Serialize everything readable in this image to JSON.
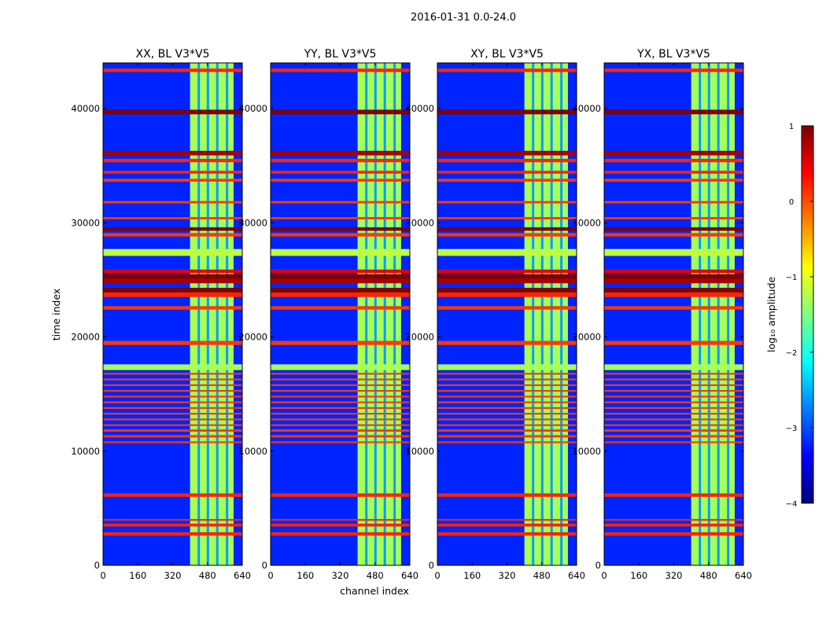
{
  "chart_data": {
    "type": "heatmap",
    "suptitle": "2016-01-31 0.0-24.0",
    "xlabel": "channel index",
    "ylabel": "time index",
    "xlim": [
      0,
      640
    ],
    "ylim": [
      0,
      44000
    ],
    "xticks": [
      0,
      160,
      320,
      480,
      640
    ],
    "yticks": [
      0,
      10000,
      20000,
      30000,
      40000
    ],
    "xtick_labels": [
      "0",
      "160",
      "320",
      "480",
      "640"
    ],
    "ytick_labels": [
      "0",
      "10000",
      "20000",
      "30000",
      "40000"
    ],
    "panels": [
      {
        "title": "XX, BL V3*V5"
      },
      {
        "title": "YY, BL V3*V5"
      },
      {
        "title": "XY, BL V3*V5"
      },
      {
        "title": "YX, BL V3*V5"
      }
    ],
    "colorbar": {
      "label": "log₁₀ amplitude",
      "range": [
        -4,
        1
      ],
      "ticks": [
        1,
        0,
        -1,
        -2,
        -3,
        -4
      ],
      "tick_labels": [
        "1",
        "0",
        "−1",
        "−2",
        "−3",
        "−4"
      ],
      "colormap": "jet",
      "stops": [
        "#00007f",
        "#0000ff",
        "#007fff",
        "#00ffff",
        "#7fff7f",
        "#ffff00",
        "#ff7f00",
        "#ff0000",
        "#7f0000"
      ]
    },
    "band": {
      "channel_start": 400,
      "channel_end": 600,
      "value_approx": -1.3,
      "divider_channels": [
        440,
        482,
        525,
        570
      ]
    },
    "background_value_approx": -3.2,
    "flagged_rows": [
      {
        "t_start": 2600,
        "t_end": 2900,
        "value": 0.2
      },
      {
        "t_start": 3400,
        "t_end": 3650,
        "value": 0.2
      },
      {
        "t_start": 3900,
        "t_end": 4050,
        "value": 0.2
      },
      {
        "t_start": 6000,
        "t_end": 6300,
        "value": 0.2
      },
      {
        "t_start": 10700,
        "t_end": 10850,
        "value": 0.1
      },
      {
        "t_start": 11200,
        "t_end": 11400,
        "value": 0.1
      },
      {
        "t_start": 11700,
        "t_end": 11900,
        "value": 0.1
      },
      {
        "t_start": 12200,
        "t_end": 12350,
        "value": 0.1
      },
      {
        "t_start": 12700,
        "t_end": 12850,
        "value": 0.1
      },
      {
        "t_start": 13200,
        "t_end": 13350,
        "value": 0.1
      },
      {
        "t_start": 13700,
        "t_end": 13850,
        "value": 0.1
      },
      {
        "t_start": 14200,
        "t_end": 14350,
        "value": 0.1
      },
      {
        "t_start": 14700,
        "t_end": 14850,
        "value": 0.1
      },
      {
        "t_start": 15200,
        "t_end": 15350,
        "value": 0.1
      },
      {
        "t_start": 15700,
        "t_end": 15850,
        "value": 0.1
      },
      {
        "t_start": 16200,
        "t_end": 16350,
        "value": 0.1
      },
      {
        "t_start": 16700,
        "t_end": 16850,
        "value": 0.1
      },
      {
        "t_start": 17100,
        "t_end": 17600,
        "value": -1.3
      },
      {
        "t_start": 19300,
        "t_end": 19650,
        "value": 0.1
      },
      {
        "t_start": 22400,
        "t_end": 22700,
        "value": 0.1
      },
      {
        "t_start": 23500,
        "t_end": 23900,
        "value": 0.2
      },
      {
        "t_start": 23900,
        "t_end": 24300,
        "value": 1.0
      },
      {
        "t_start": 24700,
        "t_end": 25100,
        "value": 0.8
      },
      {
        "t_start": 25100,
        "t_end": 25500,
        "value": 1.0
      },
      {
        "t_start": 25600,
        "t_end": 25900,
        "value": 0.5
      },
      {
        "t_start": 27100,
        "t_end": 27700,
        "value": -1.2
      },
      {
        "t_start": 28800,
        "t_end": 29100,
        "value": 0.1
      },
      {
        "t_start": 29300,
        "t_end": 29600,
        "value": 1.0
      },
      {
        "t_start": 30300,
        "t_end": 30500,
        "value": 0.1
      },
      {
        "t_start": 31700,
        "t_end": 31900,
        "value": 0.1
      },
      {
        "t_start": 33600,
        "t_end": 33850,
        "value": 0.1
      },
      {
        "t_start": 34300,
        "t_end": 34550,
        "value": 0.2
      },
      {
        "t_start": 35300,
        "t_end": 35600,
        "value": 0.2
      },
      {
        "t_start": 35900,
        "t_end": 36300,
        "value": 0.8
      },
      {
        "t_start": 39500,
        "t_end": 39900,
        "value": 1.0
      },
      {
        "t_start": 43200,
        "t_end": 43500,
        "value": 0.2
      }
    ]
  }
}
